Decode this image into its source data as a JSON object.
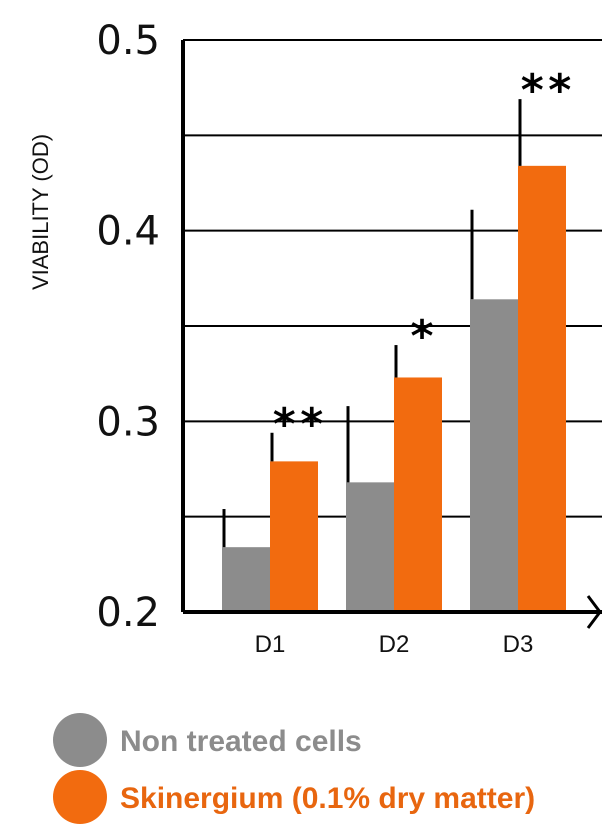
{
  "chart_data": {
    "type": "bar",
    "ylabel": "VIABILITY (OD)",
    "ylim": [
      0.2,
      0.5
    ],
    "yticks": [
      "0.2",
      "0.3",
      "0.4",
      "0.5"
    ],
    "ygrid_step": 0.05,
    "categories": [
      "D1",
      "D2",
      "D3"
    ],
    "series": [
      {
        "name": "Non treated cells",
        "values": [
          0.234,
          0.268,
          0.364
        ],
        "errors": [
          0.02,
          0.04,
          0.047
        ],
        "color": "#8c8c8c",
        "significance": [
          "",
          "",
          ""
        ]
      },
      {
        "name": "Skinergium (0.1% dry matter)",
        "values": [
          0.279,
          0.323,
          0.434
        ],
        "errors": [
          0.015,
          0.017,
          0.035
        ],
        "color": "#f26b0f",
        "significance": [
          "**",
          "*",
          "**"
        ]
      }
    ],
    "grid": true,
    "legend_position": "bottom-left"
  },
  "legend": {
    "items": [
      {
        "label": "Non treated cells",
        "color": "#8c8c8c",
        "text_color": "#8c8c8c"
      },
      {
        "label": "Skinergium (0.1% dry matter)",
        "color": "#f26b0f",
        "text_color": "#e8660f"
      }
    ]
  }
}
